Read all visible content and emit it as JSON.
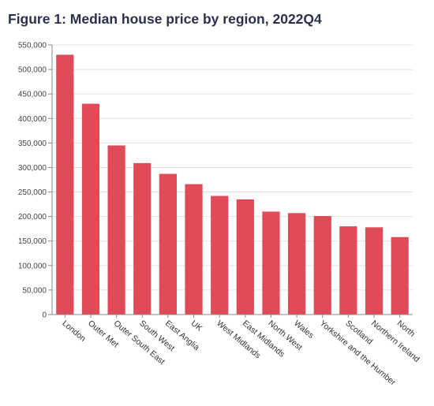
{
  "chart_data": {
    "type": "bar",
    "title": "Figure 1: Median house price by region, 2022Q4",
    "xlabel": "",
    "ylabel": "",
    "categories": [
      "London",
      "Outer Met",
      "Outer South East",
      "South West",
      "East Anglia",
      "UK",
      "West Midlands",
      "East Midlands",
      "North West",
      "Wales",
      "Yorkshire and the Humber",
      "Scotland",
      "Northern Ireland",
      "North"
    ],
    "values": [
      530000,
      430000,
      345000,
      309000,
      287000,
      266000,
      242000,
      235000,
      210000,
      207000,
      201000,
      180000,
      178000,
      158000
    ],
    "ylim": [
      0,
      550000
    ],
    "yticks": [
      0,
      50000,
      100000,
      150000,
      200000,
      250000,
      300000,
      350000,
      400000,
      450000,
      500000,
      550000
    ],
    "ytick_labels": [
      "0",
      "50,000",
      "100,000",
      "150,000",
      "200,000",
      "250,000",
      "300,000",
      "350,000",
      "400,000",
      "450,000",
      "500,000",
      "550,000"
    ],
    "grid": true,
    "bar_color": "#e04b57"
  }
}
